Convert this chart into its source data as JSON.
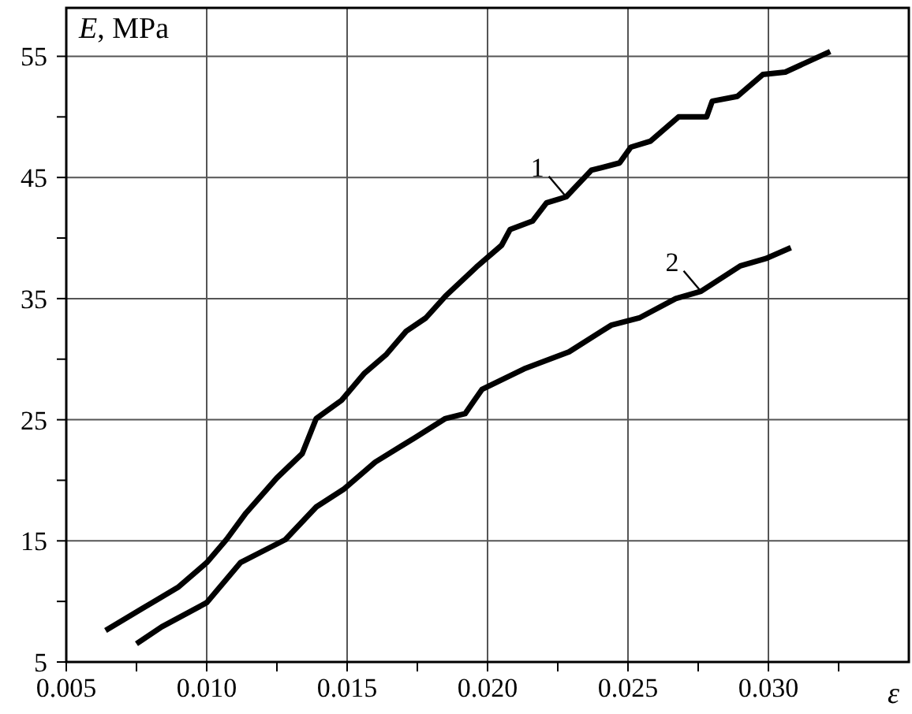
{
  "chart_data": {
    "type": "line",
    "xlabel": "ε",
    "ylabel": "E, MPa",
    "xlim": [
      0.005,
      0.035
    ],
    "ylim": [
      5,
      59
    ],
    "xticks": [
      0.005,
      {
        "value": 0.0075,
        "label": null
      },
      "0.010",
      {
        "value": 0.0125,
        "label": null
      },
      0.015,
      {
        "value": 0.0175,
        "label": null
      },
      "0.020",
      {
        "value": 0.0225,
        "label": null
      },
      0.025,
      {
        "value": 0.0275,
        "label": null
      },
      "0.030",
      {
        "value": 0.0325,
        "label": null
      }
    ],
    "yticks": [
      5,
      {
        "value": 10,
        "label": null
      },
      15,
      {
        "value": 20,
        "label": null
      },
      25,
      {
        "value": 30,
        "label": null
      },
      35,
      {
        "value": 40,
        "label": null
      },
      45,
      {
        "value": 50,
        "label": null
      },
      55
    ],
    "grid": true,
    "legend": false,
    "marker": "none",
    "line_style": "solid",
    "series": [
      {
        "name": "1",
        "color": "#000000",
        "x": [
          0.0064,
          0.0077,
          0.009,
          0.01,
          0.0107,
          0.0114,
          0.0125,
          0.0134,
          0.0139,
          0.0148,
          0.0156,
          0.0164,
          0.0171,
          0.0178,
          0.0185,
          0.0196,
          0.0205,
          0.0208,
          0.0216,
          0.0221,
          0.0228,
          0.0237,
          0.0247,
          0.0251,
          0.0258,
          0.0268,
          0.0278,
          0.028,
          0.0289,
          0.0298,
          0.0306,
          0.0322
        ],
        "values": [
          7.6,
          9.4,
          11.2,
          13.2,
          15.1,
          17.3,
          20.2,
          22.2,
          25.1,
          26.6,
          28.8,
          30.4,
          32.3,
          33.4,
          35.2,
          37.6,
          39.4,
          40.7,
          41.4,
          42.9,
          43.4,
          45.6,
          46.2,
          47.5,
          48,
          50,
          50,
          51.3,
          51.7,
          53.5,
          53.7,
          55.4
        ]
      },
      {
        "name": "2",
        "color": "#000000",
        "x": [
          0.0075,
          0.0084,
          0.01,
          0.0112,
          0.0128,
          0.0139,
          0.0149,
          0.016,
          0.0174,
          0.0185,
          0.0192,
          0.0198,
          0.0213,
          0.0229,
          0.0244,
          0.0254,
          0.0267,
          0.0276,
          0.029,
          0.0299,
          0.0308
        ],
        "values": [
          6.5,
          7.9,
          9.9,
          13.2,
          15.1,
          17.8,
          19.3,
          21.5,
          23.5,
          25.1,
          25.5,
          27.5,
          29.2,
          30.6,
          32.8,
          33.4,
          35,
          35.6,
          37.7,
          38.3,
          39.2
        ]
      }
    ]
  }
}
